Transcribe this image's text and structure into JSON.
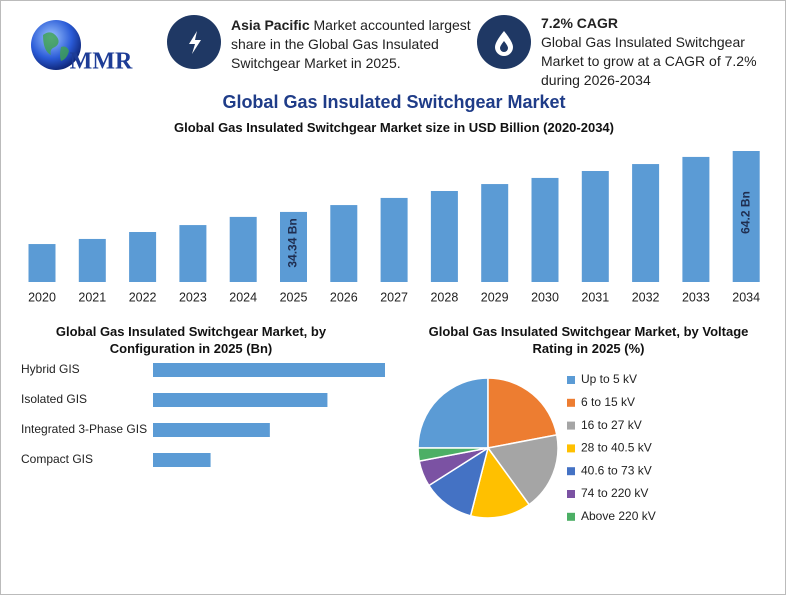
{
  "logo": "MMR",
  "highlights": [
    {
      "bold": "Asia Pacific",
      "text": "Market accounted largest share in the Global Gas Insulated Switchgear Market in 2025."
    },
    {
      "bold": "7.2% CAGR",
      "text": "Global Gas Insulated Switchgear Market to grow at a CAGR of 7.2% during 2026-2034"
    }
  ],
  "title": "Global Gas Insulated Switchgear Market",
  "chart_data": [
    {
      "type": "bar",
      "title": "Global Gas Insulated Switchgear Market size in USD Billion (2020-2034)",
      "categories": [
        "2020",
        "2021",
        "2022",
        "2023",
        "2024",
        "2025",
        "2026",
        "2027",
        "2028",
        "2029",
        "2030",
        "2031",
        "2032",
        "2033",
        "2034"
      ],
      "values": [
        18.6,
        21.1,
        24.5,
        27.9,
        31.9,
        34.34,
        37.7,
        41.2,
        44.6,
        48.0,
        51.0,
        54.4,
        57.8,
        61.3,
        64.2
      ],
      "value_labels": [
        null,
        null,
        null,
        null,
        null,
        "34.34 Bn",
        null,
        null,
        null,
        null,
        null,
        null,
        null,
        null,
        "64.2 Bn"
      ],
      "color": "#5b9bd5"
    },
    {
      "type": "barh",
      "title": "Global Gas Insulated Switchgear Market, by Configuration in 2025 (Bn)",
      "categories": [
        "Hybrid GIS",
        "Isolated GIS",
        "Integrated 3-Phase GIS",
        "Compact GIS"
      ],
      "values": [
        13.7,
        10.3,
        6.9,
        3.4
      ],
      "color": "#5b9bd5"
    },
    {
      "type": "pie",
      "title": "Global Gas Insulated Switchgear Market, by Voltage Rating in 2025 (%)",
      "categories": [
        "Up to 5 kV",
        "6 to 15 kV",
        "16 to 27 kV",
        "28 to 40.5 kV",
        "40.6 to 73 kV",
        "74 to 220 kV",
        "Above 220 kV"
      ],
      "values": [
        25,
        22,
        18,
        14,
        12,
        6,
        3
      ],
      "colors": [
        "#5b9bd5",
        "#ed7d31",
        "#a5a5a5",
        "#ffc000",
        "#4472c4",
        "#7b52a3",
        "#4caf65"
      ]
    }
  ]
}
